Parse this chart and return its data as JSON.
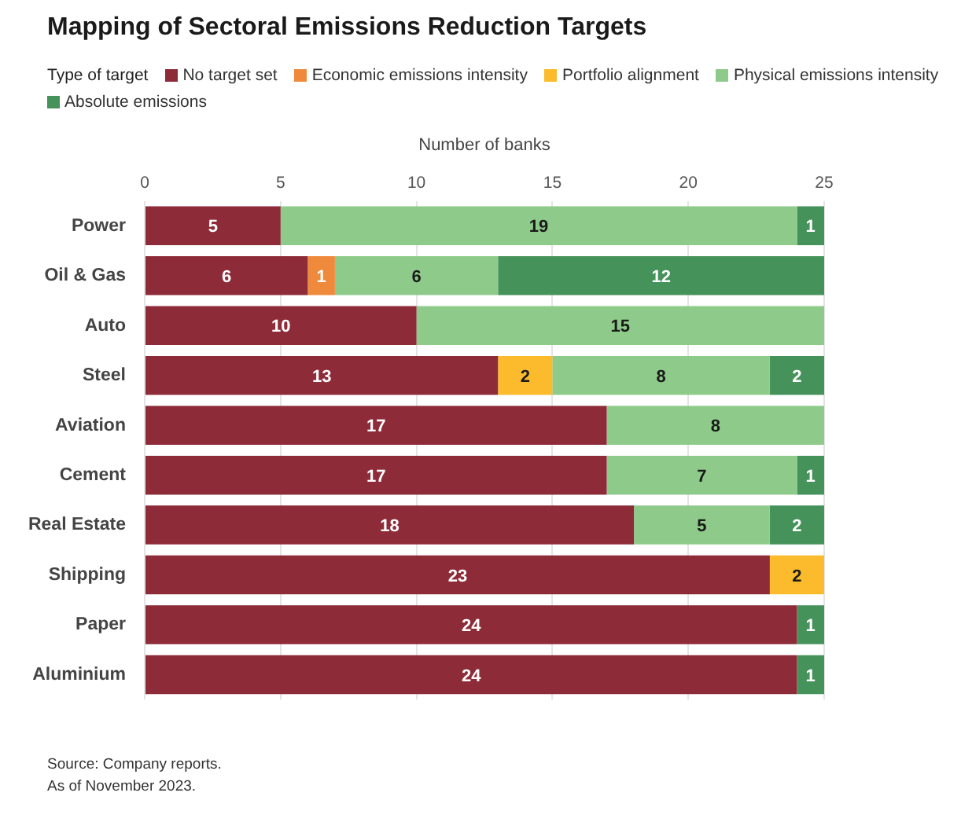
{
  "chart_data": {
    "type": "bar",
    "orientation": "horizontal",
    "stacked": true,
    "title": "Mapping of Sectoral Emissions Reduction Targets",
    "xlabel": "Number of banks",
    "legend_title": "Type of target",
    "legend": "top",
    "categories": [
      "Power",
      "Oil & Gas",
      "Auto",
      "Steel",
      "Aviation",
      "Cement",
      "Real Estate",
      "Shipping",
      "Paper",
      "Aluminium"
    ],
    "series": [
      {
        "name": "No target set",
        "color": "#8e2b39",
        "values": [
          5,
          6,
          10,
          13,
          17,
          17,
          18,
          23,
          24,
          24
        ]
      },
      {
        "name": "Economic emissions intensity",
        "color": "#ef8a3c",
        "values": [
          null,
          1,
          null,
          null,
          null,
          null,
          null,
          null,
          null,
          null
        ]
      },
      {
        "name": "Portfolio alignment",
        "color": "#fbbb2c",
        "values": [
          null,
          null,
          null,
          2,
          null,
          null,
          null,
          2,
          null,
          null
        ]
      },
      {
        "name": "Physical emissions intensity",
        "color": "#8ecb8a",
        "values": [
          19,
          6,
          15,
          8,
          8,
          7,
          5,
          null,
          null,
          null
        ]
      },
      {
        "name": "Absolute emissions",
        "color": "#45925a",
        "values": [
          1,
          12,
          null,
          2,
          null,
          1,
          2,
          null,
          1,
          1
        ]
      }
    ],
    "xlim": [
      0,
      25
    ],
    "xticks": [
      0,
      5,
      10,
      15,
      20,
      25
    ],
    "grid": "x",
    "data_labels": true,
    "annotations": [
      "Source: Company reports.",
      "As of November 2023."
    ]
  }
}
